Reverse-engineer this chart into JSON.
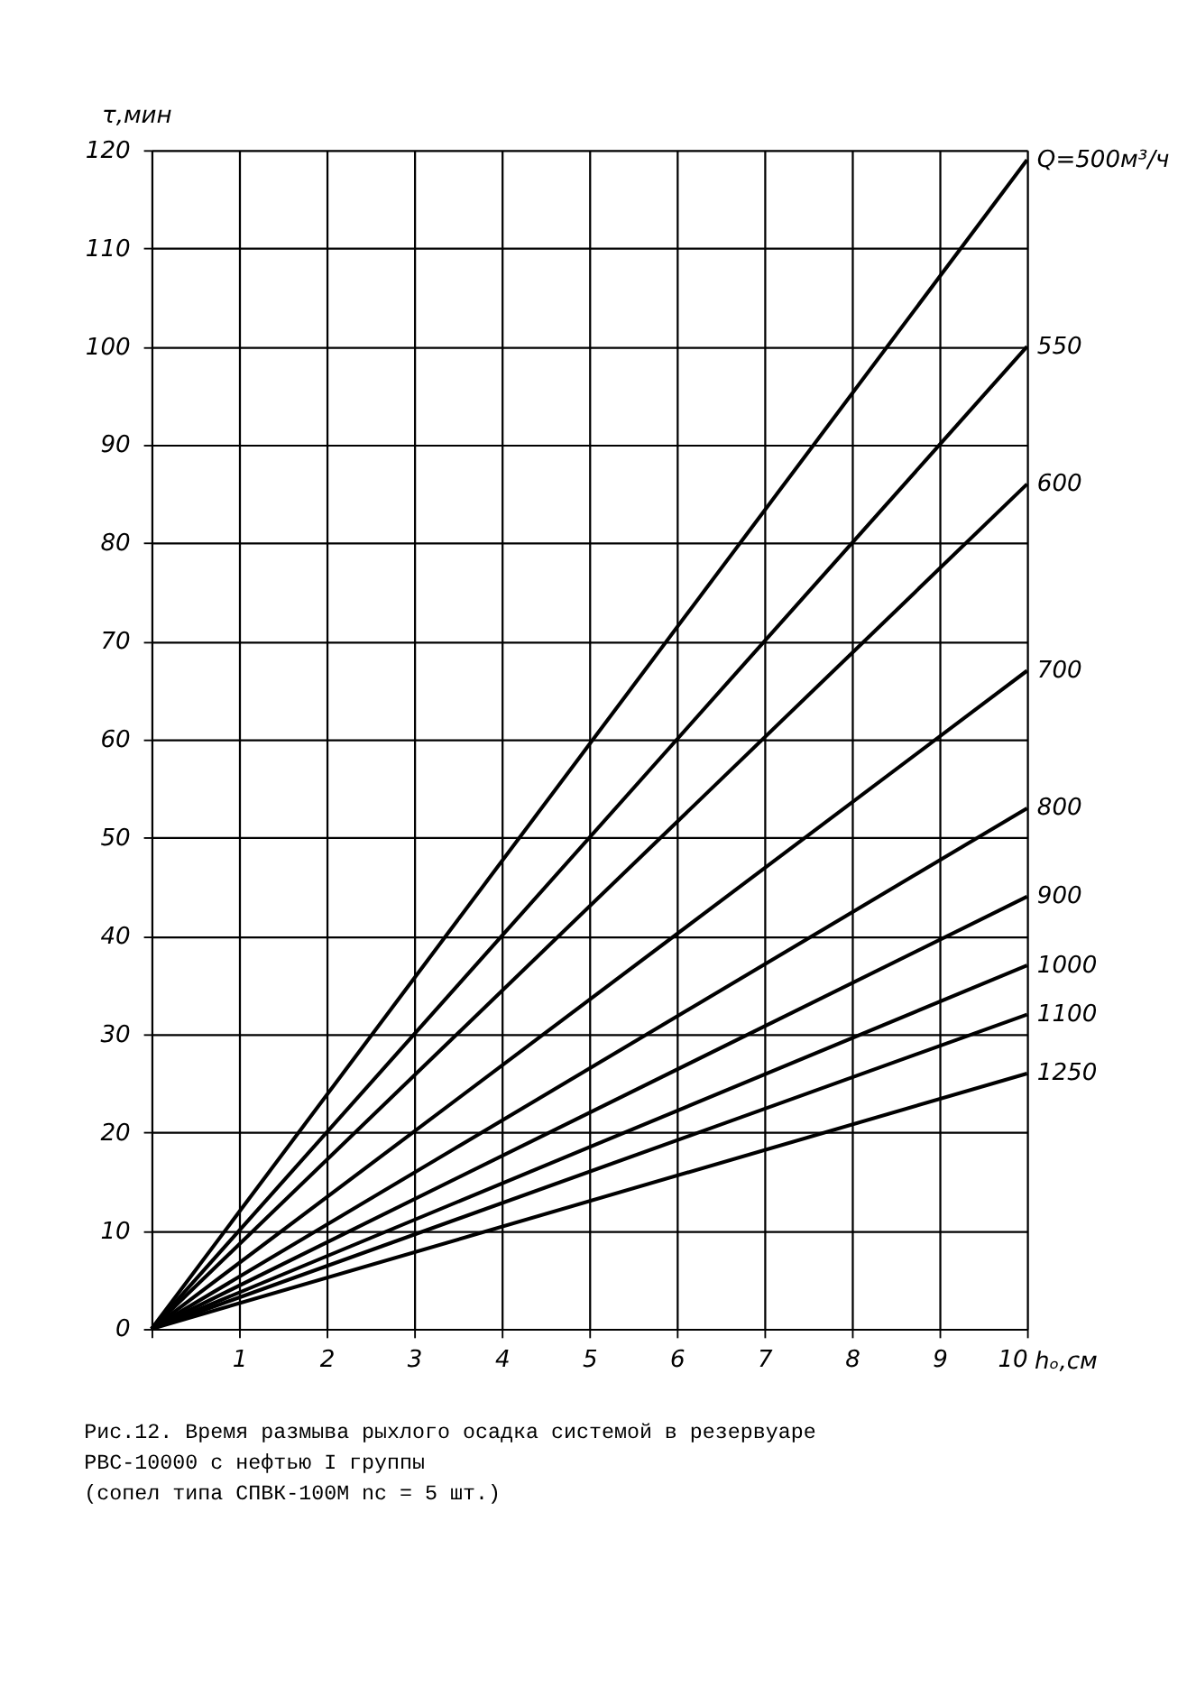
{
  "chart_data": {
    "type": "line",
    "xlabel": "hₒ,см",
    "ylabel": "τ,мин",
    "xlim": [
      0,
      10
    ],
    "xticks": [
      {
        "value": 0,
        "label": null
      },
      1,
      2,
      3,
      4,
      5,
      6,
      7,
      8,
      9,
      10
    ],
    "ylim": [
      0,
      120
    ],
    "yticks": [
      0,
      10,
      20,
      30,
      40,
      50,
      60,
      70,
      80,
      90,
      100,
      110,
      120
    ],
    "grid": true,
    "legend": false,
    "line_style": "solid",
    "marker": "none",
    "x": [
      0,
      10
    ],
    "series": [
      {
        "name": "Q=500м³/ч",
        "color": "#000000",
        "values": [
          0,
          119
        ]
      },
      {
        "name": "550",
        "color": "#000000",
        "values": [
          0,
          100
        ]
      },
      {
        "name": "600",
        "color": "#000000",
        "values": [
          0,
          86
        ]
      },
      {
        "name": "700",
        "color": "#000000",
        "values": [
          0,
          67
        ]
      },
      {
        "name": "800",
        "color": "#000000",
        "values": [
          0,
          53
        ]
      },
      {
        "name": "900",
        "color": "#000000",
        "values": [
          0,
          44
        ]
      },
      {
        "name": "1000",
        "color": "#000000",
        "values": [
          0,
          37
        ]
      },
      {
        "name": "1100",
        "color": "#000000",
        "values": [
          0,
          32
        ]
      },
      {
        "name": "1250",
        "color": "#000000",
        "values": [
          0,
          26
        ]
      }
    ],
    "annotations": [
      "Рис.12. Время размыва рыхлого осадка системой в резервуаре РВС-10000 с нефтью I группы",
      "(сопел типа СПВК-100М  nс = 5 шт.)"
    ]
  }
}
